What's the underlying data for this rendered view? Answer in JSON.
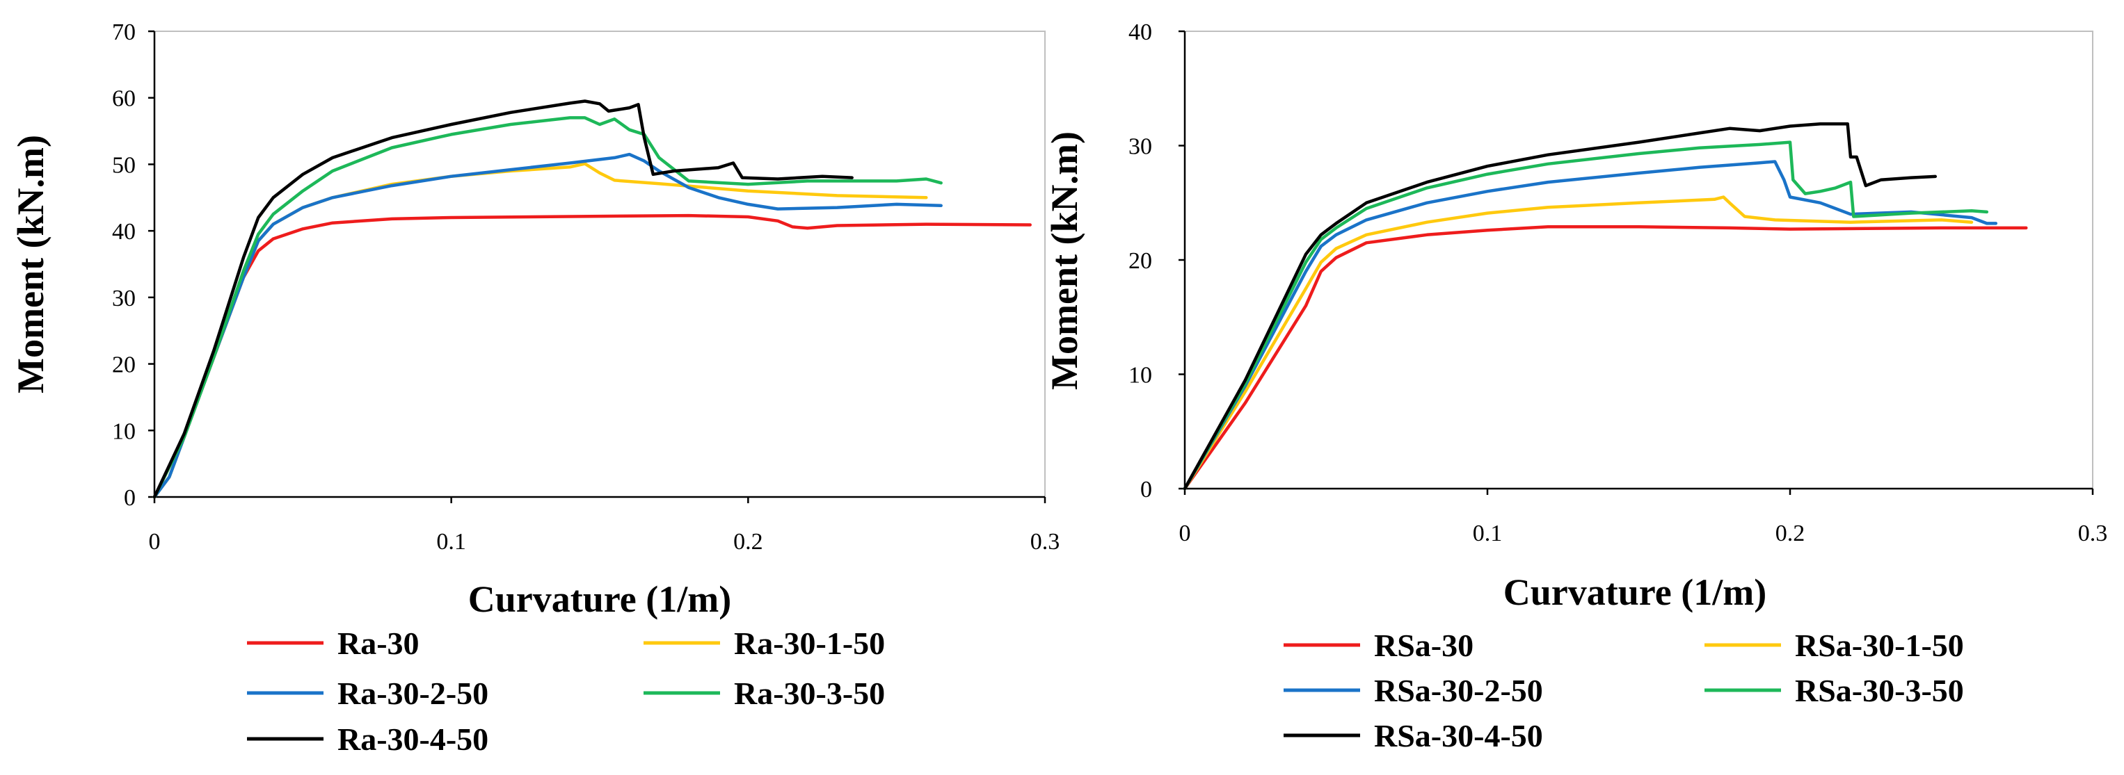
{
  "chart_data": [
    {
      "type": "line",
      "xlabel": "Curvature (1/m)",
      "ylabel": "Moment (kN.m)",
      "xlim": [
        0,
        0.3
      ],
      "ylim": [
        0,
        70
      ],
      "xticks": [
        0,
        0.1,
        0.2,
        0.3
      ],
      "xtick_labels": [
        "0",
        "0.1",
        "0.2",
        "0.3"
      ],
      "yticks": [
        0,
        10,
        20,
        30,
        40,
        50,
        60,
        70
      ],
      "ytick_labels": [
        "0",
        "10",
        "20",
        "30",
        "40",
        "50",
        "60",
        "70"
      ],
      "grid": false,
      "legend_position": "bottom",
      "series": [
        {
          "name": "Ra-30",
          "color": "#ee1c1c",
          "points": [
            [
              0,
              0
            ],
            [
              0.01,
              9
            ],
            [
              0.02,
              21
            ],
            [
              0.03,
              33
            ],
            [
              0.035,
              37
            ],
            [
              0.04,
              38.8
            ],
            [
              0.05,
              40.3
            ],
            [
              0.06,
              41.2
            ],
            [
              0.08,
              41.8
            ],
            [
              0.1,
              42
            ],
            [
              0.15,
              42.2
            ],
            [
              0.18,
              42.3
            ],
            [
              0.2,
              42.1
            ],
            [
              0.21,
              41.5
            ],
            [
              0.215,
              40.6
            ],
            [
              0.22,
              40.4
            ],
            [
              0.23,
              40.8
            ],
            [
              0.26,
              41
            ],
            [
              0.295,
              40.9
            ]
          ]
        },
        {
          "name": "Ra-30-1-50",
          "color": "#ffc90e",
          "points": [
            [
              0,
              0
            ],
            [
              0.005,
              3
            ],
            [
              0.01,
              9
            ],
            [
              0.02,
              21
            ],
            [
              0.03,
              33
            ],
            [
              0.035,
              38.5
            ],
            [
              0.04,
              41
            ],
            [
              0.05,
              43.5
            ],
            [
              0.06,
              45
            ],
            [
              0.08,
              47
            ],
            [
              0.1,
              48.2
            ],
            [
              0.12,
              49
            ],
            [
              0.14,
              49.6
            ],
            [
              0.145,
              50.1
            ],
            [
              0.15,
              48.7
            ],
            [
              0.155,
              47.6
            ],
            [
              0.17,
              47.1
            ],
            [
              0.2,
              46
            ],
            [
              0.23,
              45.3
            ],
            [
              0.26,
              45
            ]
          ]
        },
        {
          "name": "Ra-30-2-50",
          "color": "#1a73c8",
          "points": [
            [
              0,
              0
            ],
            [
              0.005,
              3
            ],
            [
              0.01,
              9
            ],
            [
              0.02,
              21
            ],
            [
              0.03,
              33
            ],
            [
              0.035,
              38.5
            ],
            [
              0.04,
              41
            ],
            [
              0.05,
              43.5
            ],
            [
              0.06,
              45
            ],
            [
              0.08,
              46.8
            ],
            [
              0.1,
              48.2
            ],
            [
              0.12,
              49.2
            ],
            [
              0.14,
              50.2
            ],
            [
              0.155,
              51
            ],
            [
              0.16,
              51.5
            ],
            [
              0.165,
              50.5
            ],
            [
              0.17,
              49
            ],
            [
              0.18,
              46.5
            ],
            [
              0.19,
              45
            ],
            [
              0.2,
              44
            ],
            [
              0.21,
              43.3
            ],
            [
              0.23,
              43.5
            ],
            [
              0.25,
              44
            ],
            [
              0.265,
              43.8
            ]
          ]
        },
        {
          "name": "Ra-30-3-50",
          "color": "#1db859",
          "points": [
            [
              0,
              0
            ],
            [
              0.01,
              9
            ],
            [
              0.02,
              21
            ],
            [
              0.03,
              34
            ],
            [
              0.035,
              39.5
            ],
            [
              0.04,
              42.5
            ],
            [
              0.05,
              46
            ],
            [
              0.06,
              49
            ],
            [
              0.08,
              52.5
            ],
            [
              0.1,
              54.5
            ],
            [
              0.12,
              56
            ],
            [
              0.14,
              57
            ],
            [
              0.145,
              57
            ],
            [
              0.15,
              56
            ],
            [
              0.155,
              56.8
            ],
            [
              0.16,
              55.2
            ],
            [
              0.165,
              54.5
            ],
            [
              0.17,
              51
            ],
            [
              0.18,
              47.5
            ],
            [
              0.2,
              47
            ],
            [
              0.22,
              47.5
            ],
            [
              0.25,
              47.5
            ],
            [
              0.26,
              47.8
            ],
            [
              0.265,
              47.2
            ]
          ]
        },
        {
          "name": "Ra-30-4-50",
          "color": "#000000",
          "points": [
            [
              0,
              0
            ],
            [
              0.01,
              9.5
            ],
            [
              0.02,
              22
            ],
            [
              0.03,
              36
            ],
            [
              0.035,
              42
            ],
            [
              0.04,
              45
            ],
            [
              0.05,
              48.5
            ],
            [
              0.06,
              51
            ],
            [
              0.08,
              54
            ],
            [
              0.1,
              56
            ],
            [
              0.12,
              57.8
            ],
            [
              0.14,
              59.2
            ],
            [
              0.145,
              59.5
            ],
            [
              0.15,
              59.1
            ],
            [
              0.153,
              58
            ],
            [
              0.16,
              58.5
            ],
            [
              0.163,
              59
            ],
            [
              0.165,
              54
            ],
            [
              0.168,
              48.5
            ],
            [
              0.175,
              49
            ],
            [
              0.19,
              49.5
            ],
            [
              0.195,
              50.2
            ],
            [
              0.198,
              48
            ],
            [
              0.21,
              47.8
            ],
            [
              0.225,
              48.2
            ],
            [
              0.235,
              48
            ]
          ]
        }
      ],
      "legend": [
        "Ra-30",
        "Ra-30-1-50",
        "Ra-30-2-50",
        "Ra-30-3-50",
        "Ra-30-4-50"
      ]
    },
    {
      "type": "line",
      "xlabel": "Curvature (1/m)",
      "ylabel": "Moment (kN.m)",
      "xlim": [
        0,
        0.3
      ],
      "ylim": [
        0,
        40
      ],
      "xticks": [
        0,
        0.1,
        0.2,
        0.3
      ],
      "xtick_labels": [
        "0",
        "0.1",
        "0.2",
        "0.3"
      ],
      "yticks": [
        0,
        10,
        20,
        30,
        40
      ],
      "ytick_labels": [
        "0",
        "10",
        "20",
        "30",
        "40"
      ],
      "grid": false,
      "legend_position": "bottom",
      "series": [
        {
          "name": "RSa-30",
          "color": "#ee1c1c",
          "points": [
            [
              0,
              0
            ],
            [
              0.02,
              7.5
            ],
            [
              0.04,
              16
            ],
            [
              0.045,
              19
            ],
            [
              0.05,
              20.2
            ],
            [
              0.06,
              21.5
            ],
            [
              0.08,
              22.2
            ],
            [
              0.1,
              22.6
            ],
            [
              0.12,
              22.9
            ],
            [
              0.15,
              22.9
            ],
            [
              0.18,
              22.8
            ],
            [
              0.2,
              22.7
            ],
            [
              0.25,
              22.8
            ],
            [
              0.278,
              22.8
            ]
          ]
        },
        {
          "name": "RSa-30-1-50",
          "color": "#ffc90e",
          "points": [
            [
              0,
              0
            ],
            [
              0.02,
              8.5
            ],
            [
              0.04,
              17.5
            ],
            [
              0.045,
              19.8
            ],
            [
              0.05,
              21
            ],
            [
              0.06,
              22.2
            ],
            [
              0.08,
              23.3
            ],
            [
              0.1,
              24.1
            ],
            [
              0.12,
              24.6
            ],
            [
              0.15,
              25
            ],
            [
              0.175,
              25.3
            ],
            [
              0.178,
              25.5
            ],
            [
              0.18,
              25
            ],
            [
              0.185,
              23.8
            ],
            [
              0.195,
              23.5
            ],
            [
              0.22,
              23.3
            ],
            [
              0.25,
              23.5
            ],
            [
              0.26,
              23.3
            ]
          ]
        },
        {
          "name": "RSa-30-2-50",
          "color": "#1a73c8",
          "points": [
            [
              0,
              0
            ],
            [
              0.02,
              9
            ],
            [
              0.04,
              19
            ],
            [
              0.045,
              21.2
            ],
            [
              0.05,
              22.2
            ],
            [
              0.06,
              23.5
            ],
            [
              0.08,
              25
            ],
            [
              0.1,
              26
            ],
            [
              0.12,
              26.8
            ],
            [
              0.15,
              27.6
            ],
            [
              0.17,
              28.1
            ],
            [
              0.19,
              28.5
            ],
            [
              0.195,
              28.6
            ],
            [
              0.198,
              27
            ],
            [
              0.2,
              25.5
            ],
            [
              0.21,
              25
            ],
            [
              0.215,
              24.5
            ],
            [
              0.22,
              24
            ],
            [
              0.24,
              24.2
            ],
            [
              0.26,
              23.7
            ],
            [
              0.265,
              23.2
            ],
            [
              0.268,
              23.2
            ]
          ]
        },
        {
          "name": "RSa-30-3-50",
          "color": "#1db859",
          "points": [
            [
              0,
              0
            ],
            [
              0.02,
              9.2
            ],
            [
              0.04,
              19.8
            ],
            [
              0.045,
              21.8
            ],
            [
              0.05,
              22.8
            ],
            [
              0.06,
              24.5
            ],
            [
              0.08,
              26.3
            ],
            [
              0.1,
              27.5
            ],
            [
              0.12,
              28.4
            ],
            [
              0.15,
              29.3
            ],
            [
              0.17,
              29.8
            ],
            [
              0.19,
              30.1
            ],
            [
              0.2,
              30.3
            ],
            [
              0.201,
              27
            ],
            [
              0.205,
              25.8
            ],
            [
              0.21,
              26
            ],
            [
              0.215,
              26.3
            ],
            [
              0.22,
              26.8
            ],
            [
              0.221,
              23.8
            ],
            [
              0.24,
              24.1
            ],
            [
              0.26,
              24.3
            ],
            [
              0.265,
              24.2
            ]
          ]
        },
        {
          "name": "RSa-30-4-50",
          "color": "#000000",
          "points": [
            [
              0,
              0
            ],
            [
              0.02,
              9.5
            ],
            [
              0.04,
              20.5
            ],
            [
              0.045,
              22.2
            ],
            [
              0.05,
              23.2
            ],
            [
              0.06,
              25
            ],
            [
              0.08,
              26.8
            ],
            [
              0.1,
              28.2
            ],
            [
              0.12,
              29.2
            ],
            [
              0.15,
              30.3
            ],
            [
              0.17,
              31.1
            ],
            [
              0.18,
              31.5
            ],
            [
              0.19,
              31.3
            ],
            [
              0.2,
              31.7
            ],
            [
              0.21,
              31.9
            ],
            [
              0.219,
              31.9
            ],
            [
              0.22,
              29
            ],
            [
              0.222,
              29
            ],
            [
              0.225,
              26.5
            ],
            [
              0.23,
              27
            ],
            [
              0.24,
              27.2
            ],
            [
              0.248,
              27.3
            ]
          ]
        }
      ],
      "legend": [
        "RSa-30",
        "RSa-30-1-50",
        "RSa-30-2-50",
        "RSa-30-3-50",
        "RSa-30-4-50"
      ]
    }
  ]
}
